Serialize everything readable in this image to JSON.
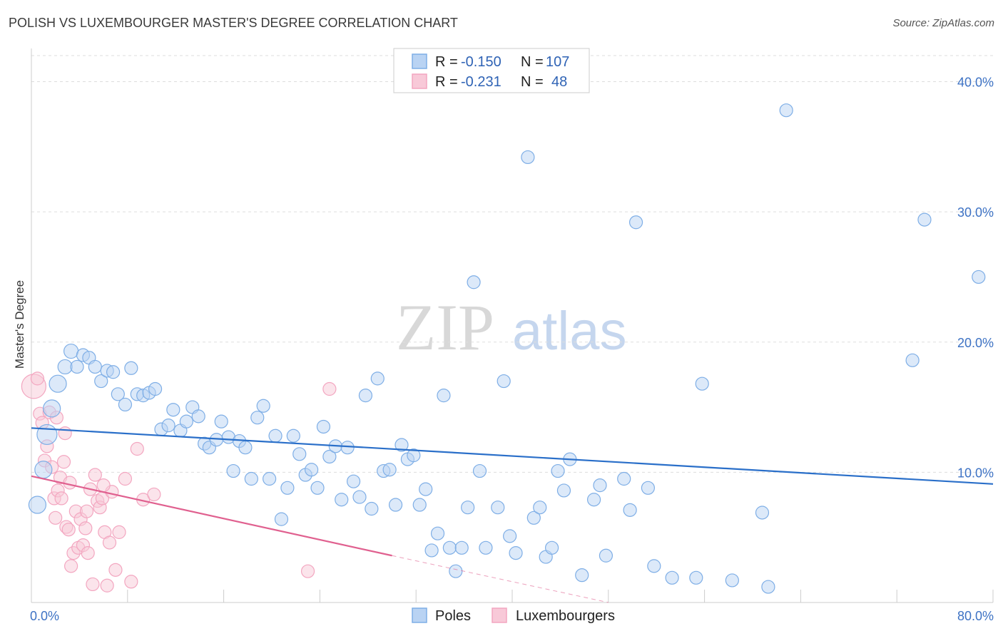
{
  "header": {
    "title": "POLISH VS LUXEMBOURGER MASTER'S DEGREE CORRELATION CHART",
    "source": "Source: ZipAtlas.com"
  },
  "watermark": {
    "zip": "ZIP",
    "atlas": "atlas"
  },
  "chart_data": {
    "type": "scatter",
    "title": "POLISH VS LUXEMBOURGER MASTER'S DEGREE CORRELATION CHART",
    "ylabel": "Master's Degree",
    "xlim": [
      0,
      80
    ],
    "ylim": [
      0,
      42
    ],
    "x_tick_labels": {
      "left": "0.0%",
      "right": "80.0%"
    },
    "y_ticks": [
      {
        "value": 10,
        "label": "10.0%"
      },
      {
        "value": 20,
        "label": "20.0%"
      },
      {
        "value": 30,
        "label": "30.0%"
      },
      {
        "value": 40,
        "label": "40.0%"
      }
    ],
    "legend": {
      "rows": [
        {
          "r_label": "R =",
          "r_value": "-0.150",
          "n_label": "N =",
          "n_value": "107"
        },
        {
          "r_label": "R =",
          "r_value": "-0.231",
          "n_label": "N =",
          "n_value": "48"
        }
      ]
    },
    "series": [
      {
        "name": "Poles",
        "color": "#7eaee6",
        "line_color": "#2a6fc9",
        "trend": {
          "x0": 0,
          "y0": 13.4,
          "x1": 80,
          "y1": 9.1
        },
        "points": [
          [
            0.5,
            7.5
          ],
          [
            1.0,
            10.2
          ],
          [
            1.3,
            12.9
          ],
          [
            1.7,
            14.9
          ],
          [
            2.2,
            16.8
          ],
          [
            2.8,
            18.1
          ],
          [
            3.3,
            19.3
          ],
          [
            3.8,
            18.1
          ],
          [
            4.3,
            19.0
          ],
          [
            4.8,
            18.8
          ],
          [
            5.3,
            18.1
          ],
          [
            5.8,
            17.0
          ],
          [
            6.3,
            17.8
          ],
          [
            6.8,
            17.7
          ],
          [
            7.2,
            16.0
          ],
          [
            7.8,
            15.2
          ],
          [
            8.3,
            18.0
          ],
          [
            8.8,
            16.0
          ],
          [
            9.3,
            15.9
          ],
          [
            9.8,
            16.1
          ],
          [
            10.3,
            16.4
          ],
          [
            10.8,
            13.3
          ],
          [
            11.4,
            13.6
          ],
          [
            11.8,
            14.8
          ],
          [
            12.4,
            13.2
          ],
          [
            12.9,
            13.9
          ],
          [
            13.4,
            15.0
          ],
          [
            13.9,
            14.3
          ],
          [
            14.4,
            12.2
          ],
          [
            14.8,
            11.9
          ],
          [
            15.4,
            12.5
          ],
          [
            15.8,
            13.9
          ],
          [
            16.4,
            12.7
          ],
          [
            16.8,
            10.1
          ],
          [
            17.3,
            12.4
          ],
          [
            17.8,
            11.9
          ],
          [
            18.3,
            9.5
          ],
          [
            18.8,
            14.2
          ],
          [
            19.3,
            15.1
          ],
          [
            19.8,
            9.5
          ],
          [
            20.3,
            12.8
          ],
          [
            20.8,
            6.4
          ],
          [
            21.3,
            8.8
          ],
          [
            21.8,
            12.8
          ],
          [
            22.3,
            11.4
          ],
          [
            22.8,
            9.8
          ],
          [
            23.3,
            10.2
          ],
          [
            23.8,
            8.8
          ],
          [
            24.3,
            13.5
          ],
          [
            24.8,
            11.2
          ],
          [
            25.3,
            12.0
          ],
          [
            25.8,
            7.9
          ],
          [
            26.3,
            11.9
          ],
          [
            26.8,
            9.3
          ],
          [
            27.3,
            8.1
          ],
          [
            27.8,
            15.9
          ],
          [
            28.3,
            7.2
          ],
          [
            28.8,
            17.2
          ],
          [
            29.3,
            10.1
          ],
          [
            29.8,
            10.2
          ],
          [
            30.3,
            7.5
          ],
          [
            30.8,
            12.1
          ],
          [
            31.3,
            11.0
          ],
          [
            31.8,
            11.3
          ],
          [
            32.3,
            7.5
          ],
          [
            32.8,
            8.7
          ],
          [
            33.3,
            4.0
          ],
          [
            33.8,
            5.3
          ],
          [
            34.3,
            15.9
          ],
          [
            34.8,
            4.2
          ],
          [
            35.3,
            2.4
          ],
          [
            35.8,
            4.2
          ],
          [
            36.3,
            7.3
          ],
          [
            36.8,
            24.6
          ],
          [
            37.3,
            10.1
          ],
          [
            37.8,
            4.2
          ],
          [
            38.8,
            7.3
          ],
          [
            39.3,
            17.0
          ],
          [
            39.8,
            5.1
          ],
          [
            40.3,
            3.8
          ],
          [
            41.3,
            34.2
          ],
          [
            41.8,
            6.5
          ],
          [
            42.3,
            7.3
          ],
          [
            42.8,
            3.5
          ],
          [
            43.3,
            4.2
          ],
          [
            43.8,
            10.1
          ],
          [
            44.3,
            8.6
          ],
          [
            44.8,
            11.0
          ],
          [
            45.8,
            2.1
          ],
          [
            46.8,
            7.9
          ],
          [
            47.3,
            9.0
          ],
          [
            47.8,
            3.6
          ],
          [
            49.3,
            9.5
          ],
          [
            49.8,
            7.1
          ],
          [
            50.3,
            29.2
          ],
          [
            51.3,
            8.8
          ],
          [
            51.8,
            2.8
          ],
          [
            53.3,
            1.9
          ],
          [
            55.3,
            1.9
          ],
          [
            55.8,
            16.8
          ],
          [
            58.3,
            1.7
          ],
          [
            60.8,
            6.9
          ],
          [
            61.3,
            1.2
          ],
          [
            62.8,
            37.8
          ],
          [
            73.3,
            18.6
          ],
          [
            74.3,
            29.4
          ],
          [
            78.8,
            25.0
          ]
        ]
      },
      {
        "name": "Luxembourgers",
        "color": "#f3a6c0",
        "line_color": "#e0608f",
        "trend": {
          "x0": 0,
          "y0": 9.7,
          "x1": 30,
          "y1": 3.6
        },
        "trend_dashed": {
          "x0": 30,
          "y0": 3.6,
          "x1": 48,
          "y1": 0
        },
        "points": [
          [
            0.2,
            16.6
          ],
          [
            0.5,
            17.2
          ],
          [
            0.7,
            14.5
          ],
          [
            0.9,
            13.8
          ],
          [
            1.1,
            10.9
          ],
          [
            1.3,
            12.0
          ],
          [
            1.5,
            14.6
          ],
          [
            1.7,
            10.4
          ],
          [
            1.9,
            8.0
          ],
          [
            2.1,
            14.2
          ],
          [
            2.2,
            8.6
          ],
          [
            2.4,
            9.6
          ],
          [
            2.5,
            8.0
          ],
          [
            2.7,
            10.8
          ],
          [
            2.8,
            13.0
          ],
          [
            2.9,
            5.8
          ],
          [
            3.1,
            5.6
          ],
          [
            3.3,
            2.8
          ],
          [
            3.5,
            3.8
          ],
          [
            3.7,
            7.0
          ],
          [
            3.9,
            4.2
          ],
          [
            4.1,
            6.4
          ],
          [
            4.3,
            4.4
          ],
          [
            4.5,
            5.7
          ],
          [
            4.7,
            3.8
          ],
          [
            4.9,
            8.7
          ],
          [
            5.1,
            1.4
          ],
          [
            5.3,
            9.8
          ],
          [
            5.5,
            7.8
          ],
          [
            5.7,
            7.3
          ],
          [
            5.9,
            8.0
          ],
          [
            6.1,
            5.4
          ],
          [
            6.3,
            1.3
          ],
          [
            6.5,
            4.6
          ],
          [
            6.7,
            8.5
          ],
          [
            7.0,
            2.5
          ],
          [
            7.3,
            5.4
          ],
          [
            7.8,
            9.5
          ],
          [
            8.3,
            1.6
          ],
          [
            8.8,
            11.8
          ],
          [
            9.3,
            7.9
          ],
          [
            10.2,
            8.3
          ],
          [
            24.8,
            16.4
          ],
          [
            23.0,
            2.4
          ],
          [
            3.2,
            9.2
          ],
          [
            6.0,
            9.0
          ],
          [
            2.0,
            6.5
          ],
          [
            4.6,
            7.0
          ]
        ]
      }
    ],
    "point_sizes": {
      "Poles": [
        24,
        24,
        28,
        24,
        24,
        20,
        20,
        18,
        18,
        18,
        18,
        18,
        18,
        18,
        18,
        18,
        18,
        18,
        18,
        18,
        18,
        18,
        18,
        18,
        18,
        18,
        18,
        18,
        18,
        18,
        18,
        18,
        18,
        18,
        18,
        18,
        18,
        18,
        18,
        18,
        18,
        18,
        18,
        18,
        18,
        18,
        18,
        18,
        18,
        18,
        18,
        18,
        18,
        18,
        18,
        18,
        18,
        18,
        18,
        18,
        18,
        18,
        18,
        18,
        18,
        18,
        18,
        18,
        18,
        18,
        18,
        18,
        18,
        18,
        18,
        18,
        18,
        18,
        18,
        18,
        18,
        18,
        18,
        18,
        18,
        18,
        18,
        18,
        18,
        18,
        18,
        18,
        18,
        18,
        18,
        18,
        18,
        18,
        18,
        18,
        18,
        18,
        18,
        18,
        18,
        18,
        18
      ],
      "Luxembourgers": [
        34,
        18,
        18,
        18,
        18,
        18,
        18,
        18,
        18,
        18,
        18,
        18,
        18,
        18,
        18,
        18,
        18,
        18,
        18,
        18,
        18,
        18,
        18,
        18,
        18,
        18,
        18,
        18,
        18,
        18,
        18,
        18,
        18,
        18,
        18,
        18,
        18,
        18,
        18,
        18,
        18,
        18,
        18,
        18,
        18,
        18,
        18,
        18
      ]
    }
  }
}
